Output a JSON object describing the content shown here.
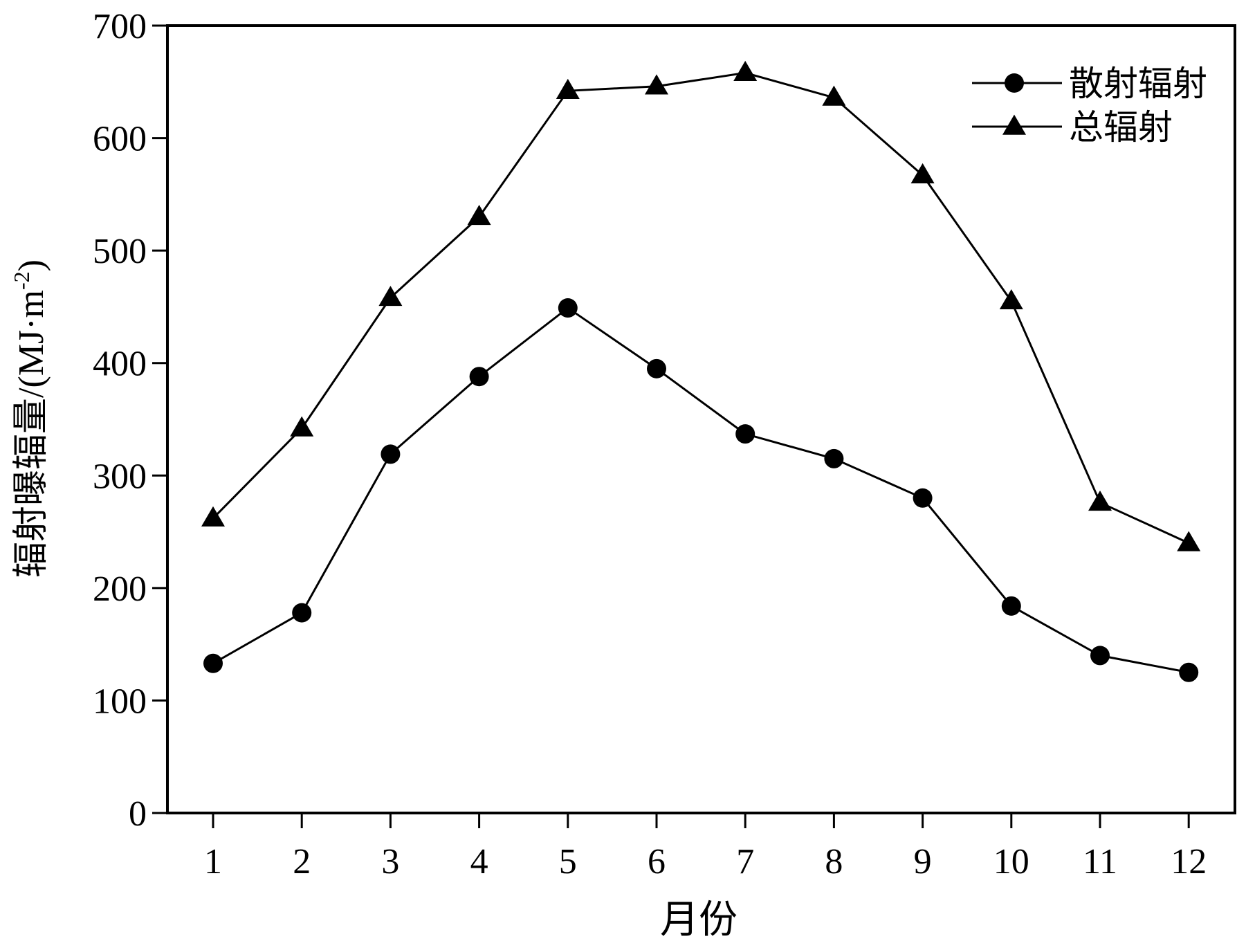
{
  "chart_data": {
    "type": "line",
    "title": "",
    "xlabel": "月份",
    "ylabel_main": "辐射曝辐量/(MJ·m",
    "ylabel_sup": "-2",
    "ylabel_close": ")",
    "ylim": [
      0,
      700
    ],
    "yticks": [
      0,
      100,
      200,
      300,
      400,
      500,
      600,
      700
    ],
    "categories": [
      "1",
      "2",
      "3",
      "4",
      "5",
      "6",
      "7",
      "8",
      "9",
      "10",
      "11",
      "12"
    ],
    "grid": false,
    "legend_position": "top-right",
    "series": [
      {
        "name": "散射辐射",
        "marker": "circle",
        "color": "#000000",
        "values": [
          133,
          178,
          319,
          388,
          449,
          395,
          337,
          315,
          280,
          184,
          140,
          125
        ]
      },
      {
        "name": "总辐射",
        "marker": "triangle",
        "color": "#000000",
        "values": [
          262,
          342,
          458,
          530,
          642,
          646,
          658,
          636,
          567,
          455,
          276,
          240
        ]
      }
    ]
  }
}
